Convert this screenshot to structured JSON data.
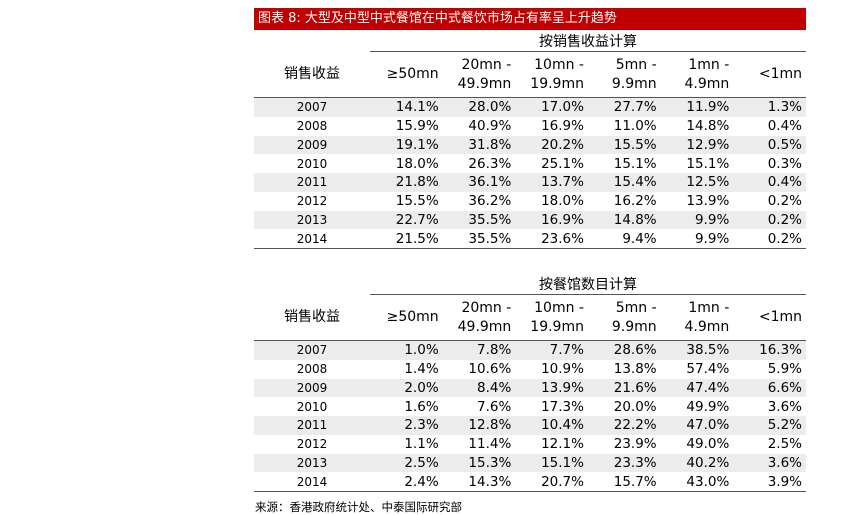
{
  "title": "图表 8: 大型及中型中式餐馆在中式餐饮市场占有率呈上升趋势",
  "row_header": "销售收益",
  "columns": [
    {
      "l1": "≥50mn",
      "l2": ""
    },
    {
      "l1": "20mn -",
      "l2": "49.9mn"
    },
    {
      "l1": "10mn -",
      "l2": "19.9mn"
    },
    {
      "l1": "5mn -",
      "l2": "9.9mn"
    },
    {
      "l1": "1mn -",
      "l2": "4.9mn"
    },
    {
      "l1": "<1mn",
      "l2": ""
    }
  ],
  "tables": [
    {
      "group_title": "按销售收益计算",
      "rows": [
        {
          "year": "2007",
          "values": [
            "14.1%",
            "28.0%",
            "17.0%",
            "27.7%",
            "11.9%",
            "1.3%"
          ]
        },
        {
          "year": "2008",
          "values": [
            "15.9%",
            "40.9%",
            "16.9%",
            "11.0%",
            "14.8%",
            "0.4%"
          ]
        },
        {
          "year": "2009",
          "values": [
            "19.1%",
            "31.8%",
            "20.2%",
            "15.5%",
            "12.9%",
            "0.5%"
          ]
        },
        {
          "year": "2010",
          "values": [
            "18.0%",
            "26.3%",
            "25.1%",
            "15.1%",
            "15.1%",
            "0.3%"
          ]
        },
        {
          "year": "2011",
          "values": [
            "21.8%",
            "36.1%",
            "13.7%",
            "15.4%",
            "12.5%",
            "0.4%"
          ]
        },
        {
          "year": "2012",
          "values": [
            "15.5%",
            "36.2%",
            "18.0%",
            "16.2%",
            "13.9%",
            "0.2%"
          ]
        },
        {
          "year": "2013",
          "values": [
            "22.7%",
            "35.5%",
            "16.9%",
            "14.8%",
            "9.9%",
            "0.2%"
          ]
        },
        {
          "year": "2014",
          "values": [
            "21.5%",
            "35.5%",
            "23.6%",
            "9.4%",
            "9.9%",
            "0.2%"
          ]
        }
      ]
    },
    {
      "group_title": "按餐馆数目计算",
      "rows": [
        {
          "year": "2007",
          "values": [
            "1.0%",
            "7.8%",
            "7.7%",
            "28.6%",
            "38.5%",
            "16.3%"
          ]
        },
        {
          "year": "2008",
          "values": [
            "1.4%",
            "10.6%",
            "10.9%",
            "13.8%",
            "57.4%",
            "5.9%"
          ]
        },
        {
          "year": "2009",
          "values": [
            "2.0%",
            "8.4%",
            "13.9%",
            "21.6%",
            "47.4%",
            "6.6%"
          ]
        },
        {
          "year": "2010",
          "values": [
            "1.6%",
            "7.6%",
            "17.3%",
            "20.0%",
            "49.9%",
            "3.6%"
          ]
        },
        {
          "year": "2011",
          "values": [
            "2.3%",
            "12.8%",
            "10.4%",
            "22.2%",
            "47.0%",
            "5.2%"
          ]
        },
        {
          "year": "2012",
          "values": [
            "1.1%",
            "11.4%",
            "12.1%",
            "23.9%",
            "49.0%",
            "2.5%"
          ]
        },
        {
          "year": "2013",
          "values": [
            "2.5%",
            "15.3%",
            "15.1%",
            "23.3%",
            "40.2%",
            "3.6%"
          ]
        },
        {
          "year": "2014",
          "values": [
            "2.4%",
            "14.3%",
            "20.7%",
            "15.7%",
            "43.0%",
            "3.9%"
          ]
        }
      ]
    }
  ],
  "source": "来源：香港政府统计处、中泰国际研究部",
  "colors": {
    "title_bar": "#c00000",
    "shade": "#ececec"
  }
}
